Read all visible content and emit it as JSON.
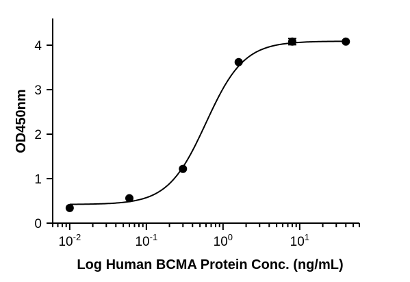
{
  "chart_data": {
    "type": "scatter",
    "title": "",
    "xlabel": "Log Human BCMA Protein Conc. (ng/mL)",
    "ylabel": "OD450nm",
    "x_scale": "log",
    "xlim": [
      0.006,
      60
    ],
    "ylim": [
      0,
      4.6
    ],
    "x_ticks": [
      {
        "value": 0.01,
        "base": "10",
        "exp": "-2"
      },
      {
        "value": 0.1,
        "base": "10",
        "exp": "-1"
      },
      {
        "value": 1,
        "base": "10",
        "exp": "0"
      },
      {
        "value": 10,
        "base": "10",
        "exp": "1"
      }
    ],
    "y_ticks": [
      "0",
      "1",
      "2",
      "3",
      "4"
    ],
    "points": [
      {
        "x": 0.01,
        "y": 0.34
      },
      {
        "x": 0.06,
        "y": 0.56
      },
      {
        "x": 0.3,
        "y": 1.22
      },
      {
        "x": 1.6,
        "y": 3.62
      },
      {
        "x": 8.0,
        "y": 4.08,
        "error": 0.07
      },
      {
        "x": 40,
        "y": 4.08
      }
    ],
    "fit": {
      "bottom": 0.42,
      "top": 4.09,
      "ec50": 0.6,
      "hill": 1.75
    },
    "grid": false,
    "legend": "none",
    "colors": {
      "marker": "#000000",
      "line": "#000000"
    }
  }
}
